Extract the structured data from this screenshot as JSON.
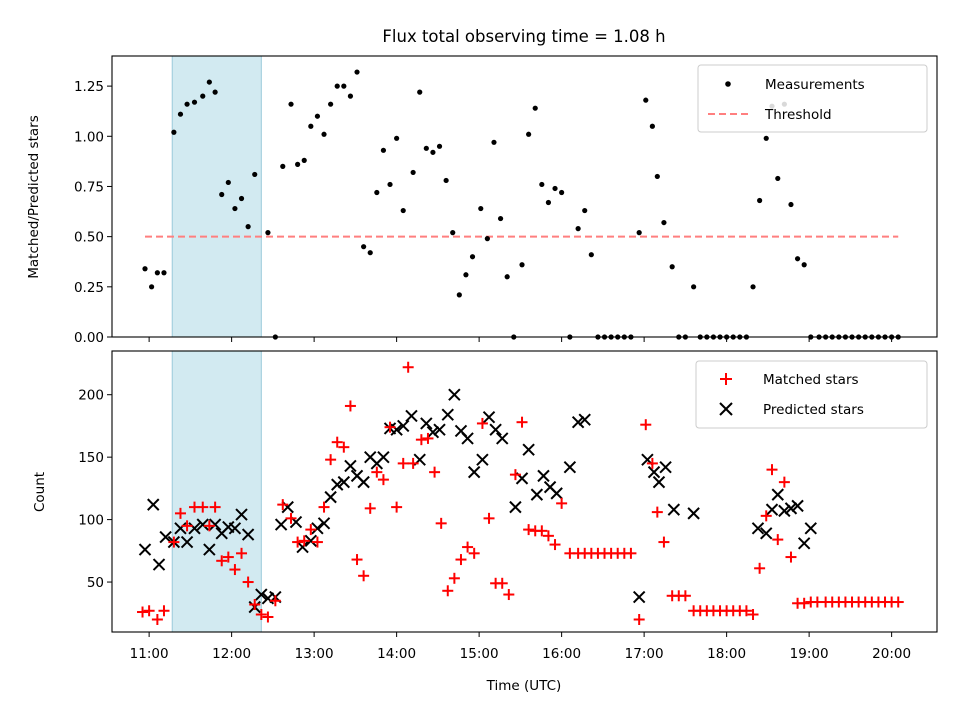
{
  "chart_data": [
    {
      "type": "scatter",
      "title": "Flux total observing time = 1.08 h",
      "xlabel": "",
      "ylabel": "Matched/Predicted stars",
      "ylim": [
        0,
        1.4
      ],
      "yticks": [
        "0.00",
        "0.25",
        "0.50",
        "0.75",
        "1.00",
        "1.25"
      ],
      "highlight_span": {
        "x0": 11.28,
        "x1": 12.36,
        "color": "#add8e6"
      },
      "legend": {
        "position": "top-right"
      },
      "series": [
        {
          "name": "Measurements",
          "color": "#000000",
          "marker": "dot",
          "x": [
            10.95,
            11.03,
            11.1,
            11.18,
            11.3,
            11.38,
            11.46,
            11.55,
            11.65,
            11.73,
            11.8,
            11.88,
            11.96,
            12.04,
            12.12,
            12.2,
            12.28,
            12.44,
            12.53,
            12.62,
            12.72,
            12.8,
            12.88,
            12.96,
            13.04,
            13.12,
            13.2,
            13.28,
            13.36,
            13.44,
            13.52,
            13.6,
            13.68,
            13.76,
            13.84,
            13.92,
            14.0,
            14.08,
            14.2,
            14.28,
            14.36,
            14.44,
            14.52,
            14.6,
            14.68,
            14.76,
            14.84,
            14.92,
            15.02,
            15.1,
            15.18,
            15.26,
            15.34,
            15.42,
            15.52,
            15.6,
            15.68,
            15.76,
            15.84,
            15.92,
            16.0,
            16.1,
            16.2,
            16.28,
            16.36,
            16.44,
            16.52,
            16.6,
            16.68,
            16.76,
            16.84,
            16.94,
            17.02,
            17.1,
            17.16,
            17.24,
            17.34,
            17.42,
            17.5,
            17.6,
            17.68,
            17.76,
            17.84,
            17.92,
            18.0,
            18.08,
            18.16,
            18.24,
            18.32,
            18.4,
            18.48,
            18.55,
            18.62,
            18.7,
            18.78,
            18.86,
            18.94,
            19.02,
            19.12,
            19.2,
            19.28,
            19.36,
            19.44,
            19.52,
            19.6,
            19.68,
            19.76,
            19.84,
            19.92,
            20.0,
            20.08
          ],
          "y": [
            0.34,
            0.25,
            0.32,
            0.32,
            1.02,
            1.11,
            1.16,
            1.17,
            1.2,
            1.27,
            1.22,
            0.71,
            0.77,
            0.64,
            0.69,
            0.55,
            0.81,
            0.52,
            0.0,
            0.85,
            1.16,
            0.86,
            0.88,
            1.05,
            1.1,
            1.01,
            1.16,
            1.25,
            1.25,
            1.2,
            1.32,
            0.45,
            0.42,
            0.72,
            0.93,
            0.76,
            0.99,
            0.63,
            0.82,
            1.22,
            0.94,
            0.92,
            0.95,
            0.78,
            0.52,
            0.21,
            0.31,
            0.4,
            0.64,
            0.49,
            0.97,
            0.59,
            0.3,
            0.0,
            0.36,
            1.01,
            1.14,
            0.76,
            0.67,
            0.74,
            0.72,
            0.0,
            0.54,
            0.63,
            0.41,
            0.0,
            0.0,
            0.0,
            0.0,
            0.0,
            0.0,
            0.52,
            1.18,
            1.05,
            0.8,
            0.57,
            0.35,
            0.0,
            0.0,
            0.25,
            0.0,
            0.0,
            0.0,
            0.0,
            0.0,
            0.0,
            0.0,
            0.0,
            0.25,
            0.68,
            0.99,
            1.15,
            0.79,
            1.16,
            0.66,
            0.39,
            0.36,
            0.0,
            0.0,
            0.0,
            0.0,
            0.0,
            0.0,
            0.0,
            0.0,
            0.0,
            0.0,
            0.0,
            0.0,
            0.0,
            0.0
          ]
        },
        {
          "name": "Threshold",
          "color": "#ff7f7f",
          "style": "dashed",
          "x": [
            10.95,
            20.08
          ],
          "y": [
            0.5,
            0.5
          ]
        }
      ]
    },
    {
      "type": "scatter",
      "title": "",
      "xlabel": "Time (UTC)",
      "ylabel": "Count",
      "ylim": [
        10,
        235
      ],
      "yticks": [
        "50",
        "100",
        "150",
        "200"
      ],
      "xlim": [
        10.55,
        20.55
      ],
      "xticks": [
        "11:00",
        "12:00",
        "13:00",
        "14:00",
        "15:00",
        "16:00",
        "17:00",
        "18:00",
        "19:00",
        "20:00"
      ],
      "highlight_span": {
        "x0": 11.28,
        "x1": 12.36,
        "color": "#add8e6"
      },
      "legend": {
        "position": "top-right"
      },
      "series": [
        {
          "name": "Matched stars",
          "color": "#ff0000",
          "marker": "plus",
          "x": [
            10.92,
            11.0,
            11.1,
            11.18,
            11.3,
            11.38,
            11.46,
            11.55,
            11.65,
            11.73,
            11.8,
            11.88,
            11.96,
            12.04,
            12.12,
            12.2,
            12.28,
            12.36,
            12.44,
            12.53,
            12.62,
            12.72,
            12.8,
            12.88,
            12.96,
            13.04,
            13.12,
            13.2,
            13.28,
            13.36,
            13.44,
            13.52,
            13.6,
            13.68,
            13.76,
            13.84,
            13.92,
            14.0,
            14.08,
            14.14,
            14.2,
            14.3,
            14.38,
            14.46,
            14.54,
            14.62,
            14.7,
            14.78,
            14.86,
            14.94,
            15.04,
            15.12,
            15.2,
            15.28,
            15.36,
            15.44,
            15.52,
            15.6,
            15.68,
            15.76,
            15.84,
            15.92,
            16.0,
            16.1,
            16.2,
            16.28,
            16.36,
            16.44,
            16.52,
            16.6,
            16.68,
            16.76,
            16.84,
            16.94,
            17.02,
            17.1,
            17.16,
            17.24,
            17.34,
            17.42,
            17.5,
            17.6,
            17.68,
            17.76,
            17.84,
            17.92,
            18.0,
            18.08,
            18.16,
            18.24,
            18.32,
            18.4,
            18.48,
            18.55,
            18.62,
            18.7,
            18.78,
            18.86,
            18.94,
            19.02,
            19.1,
            19.2,
            19.28,
            19.36,
            19.44,
            19.52,
            19.6,
            19.68,
            19.76,
            19.84,
            19.92,
            20.0,
            20.08
          ],
          "y": [
            26,
            27,
            20,
            27,
            82,
            105,
            95,
            110,
            110,
            95,
            110,
            67,
            70,
            60,
            73,
            50,
            32,
            24,
            22,
            35,
            112,
            101,
            82,
            83,
            92,
            82,
            110,
            148,
            162,
            158,
            191,
            68,
            55,
            109,
            138,
            132,
            174,
            110,
            145,
            222,
            145,
            164,
            165,
            138,
            97,
            43,
            53,
            68,
            78,
            73,
            177,
            101,
            49,
            49,
            40,
            136,
            178,
            92,
            91,
            91,
            87,
            80,
            113,
            73,
            73,
            73,
            73,
            73,
            73,
            73,
            73,
            73,
            73,
            20,
            176,
            145,
            106,
            82,
            39,
            39,
            39,
            27,
            27,
            27,
            27,
            27,
            27,
            27,
            27,
            27,
            24,
            61,
            103,
            140,
            84,
            130,
            70,
            33,
            33,
            34,
            34,
            34,
            34,
            34,
            34,
            34,
            34,
            34,
            34,
            34,
            34,
            34,
            34
          ]
        },
        {
          "name": "Predicted stars",
          "color": "#000000",
          "marker": "x",
          "x": [
            10.95,
            11.05,
            11.12,
            11.2,
            11.3,
            11.38,
            11.46,
            11.55,
            11.65,
            11.73,
            11.8,
            11.88,
            11.96,
            12.04,
            12.12,
            12.2,
            12.28,
            12.36,
            12.44,
            12.53,
            12.6,
            12.68,
            12.78,
            12.86,
            12.96,
            13.04,
            13.12,
            13.2,
            13.28,
            13.36,
            13.44,
            13.52,
            13.6,
            13.68,
            13.76,
            13.84,
            13.92,
            14.0,
            14.08,
            14.18,
            14.28,
            14.36,
            14.44,
            14.52,
            14.62,
            14.7,
            14.78,
            14.86,
            14.94,
            15.04,
            15.12,
            15.2,
            15.28,
            15.44,
            15.52,
            15.6,
            15.7,
            15.78,
            15.86,
            15.94,
            16.1,
            16.2,
            16.28,
            16.94,
            17.04,
            17.12,
            17.18,
            17.26,
            17.36,
            17.6,
            18.38,
            18.48,
            18.55,
            18.62,
            18.7,
            18.78,
            18.86,
            18.94,
            19.02
          ],
          "y": [
            76,
            112,
            64,
            86,
            82,
            93,
            82,
            93,
            96,
            76,
            96,
            89,
            94,
            93,
            104,
            88,
            30,
            40,
            37,
            38,
            96,
            110,
            98,
            78,
            83,
            93,
            97,
            118,
            128,
            130,
            143,
            135,
            130,
            150,
            145,
            150,
            173,
            172,
            175,
            183,
            148,
            177,
            170,
            172,
            184,
            200,
            171,
            165,
            138,
            148,
            182,
            172,
            165,
            110,
            133,
            156,
            120,
            135,
            126,
            121,
            142,
            178,
            180,
            38,
            148,
            138,
            130,
            142,
            108,
            105,
            93,
            89,
            108,
            120,
            107,
            109,
            111,
            81,
            93
          ]
        }
      ]
    }
  ]
}
